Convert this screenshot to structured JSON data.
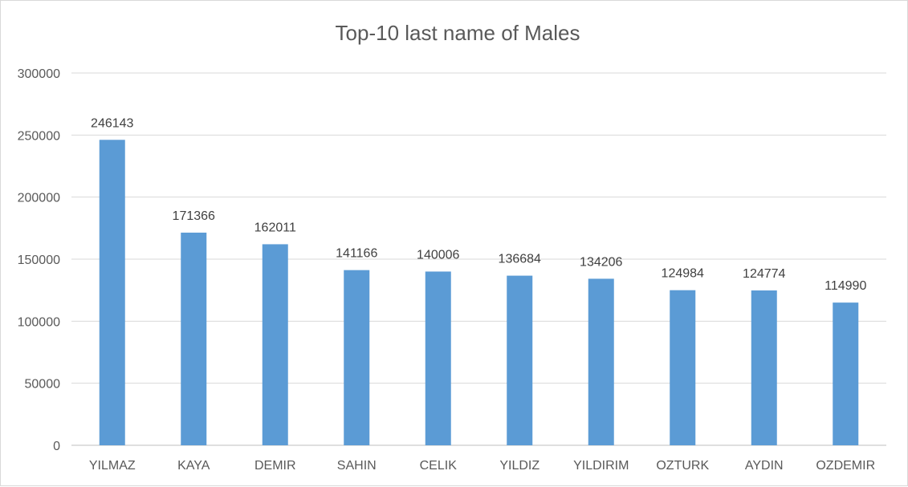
{
  "chart_data": {
    "type": "bar",
    "title": "Top-10 last name of Males",
    "categories": [
      "YILMAZ",
      "KAYA",
      "DEMIR",
      "SAHIN",
      "CELIK",
      "YILDIZ",
      "YILDIRIM",
      "OZTURK",
      "AYDIN",
      "OZDEMIR"
    ],
    "values": [
      246143,
      171366,
      162011,
      141166,
      140006,
      136684,
      134206,
      124984,
      124774,
      114990
    ],
    "data_labels": [
      "246143",
      "171366",
      "162011",
      "141166",
      "140006",
      "136684",
      "134206",
      "124984",
      "124774",
      "114990"
    ],
    "y_ticks": [
      "0",
      "50000",
      "100000",
      "150000",
      "200000",
      "250000",
      "300000"
    ],
    "ylim": [
      0,
      300000
    ],
    "grid": true,
    "legend": "none",
    "bar_color": "#5b9bd5"
  }
}
